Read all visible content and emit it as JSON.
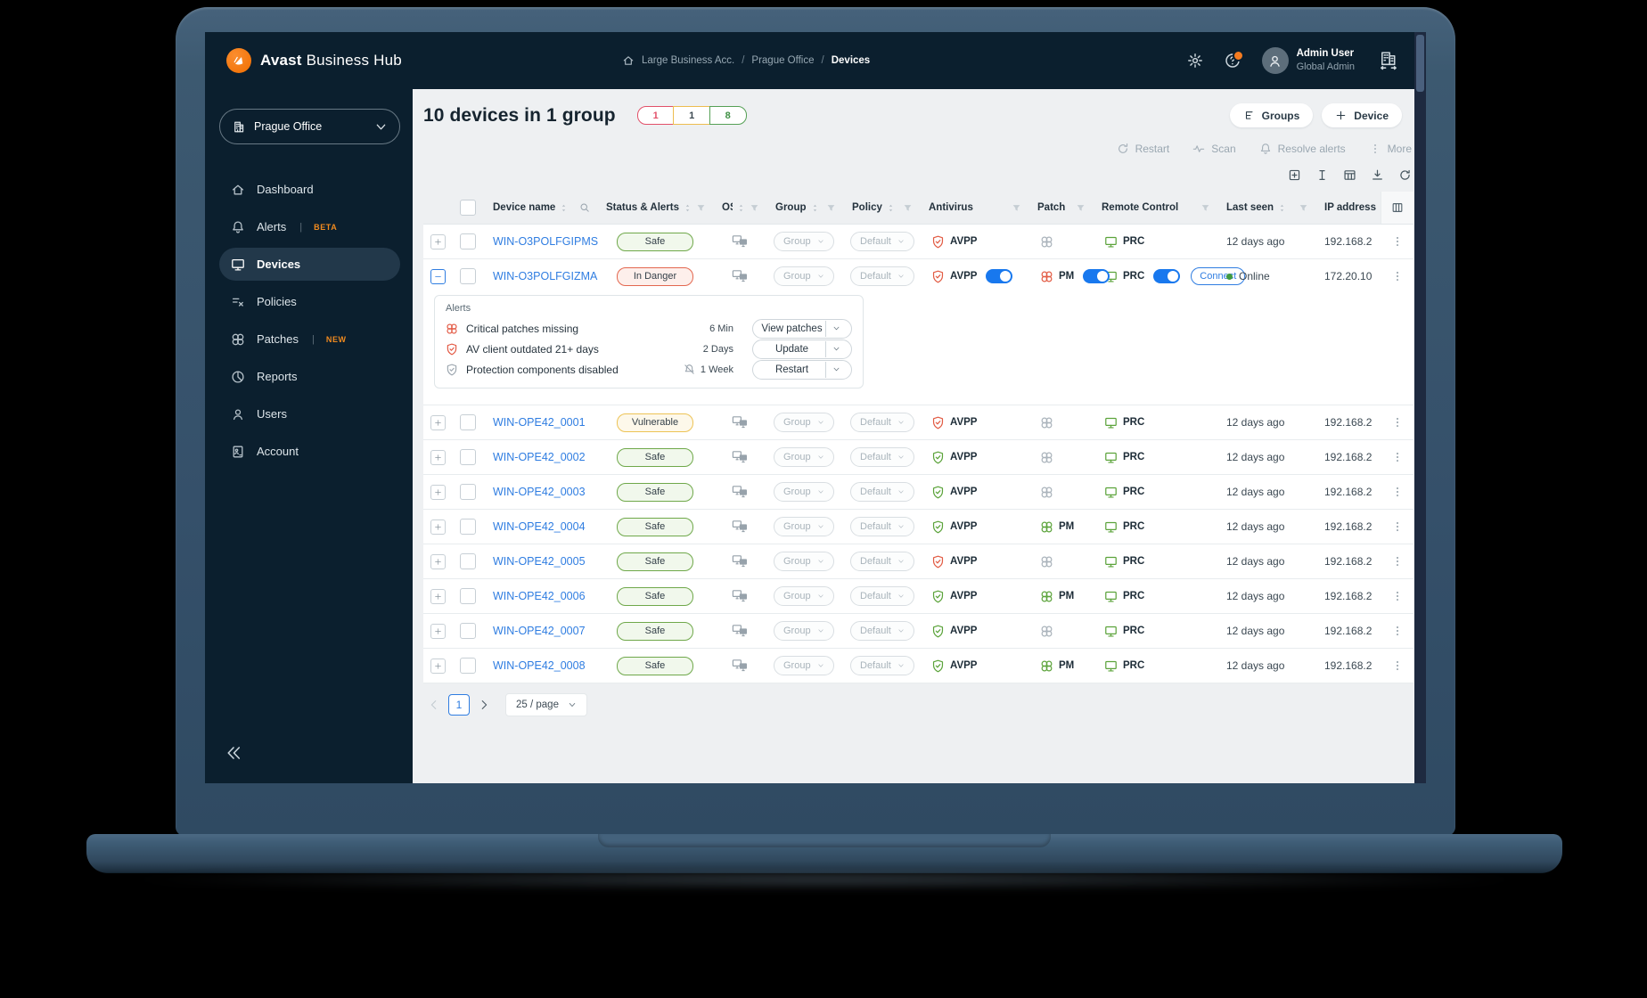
{
  "brand": {
    "name_bold": "Avast",
    "name_rest": " Business Hub"
  },
  "breadcrumb": {
    "separator": "/",
    "items": [
      "Large Business Acc.",
      "Prague Office",
      "Devices"
    ]
  },
  "user": {
    "name": "Admin User",
    "role": "Global Admin"
  },
  "theme": {
    "orange": "#f47b20",
    "blue": "#2f7de1",
    "green": "#5ba33a",
    "red": "#e25b43",
    "yellow": "#edc355",
    "dark_navy": "#0b1f2e"
  },
  "sidebar": {
    "selector_label": "Prague Office",
    "badge_divider": "|",
    "items": [
      {
        "id": "dashboard",
        "label": "Dashboard",
        "icon": "home"
      },
      {
        "id": "alerts",
        "label": "Alerts",
        "badge": "BETA",
        "icon": "bell"
      },
      {
        "id": "devices",
        "label": "Devices",
        "icon": "monitor",
        "active": true
      },
      {
        "id": "policies",
        "label": "Policies",
        "icon": "policies"
      },
      {
        "id": "patches",
        "label": "Patches",
        "badge": "NEW",
        "icon": "patch-knot"
      },
      {
        "id": "reports",
        "label": "Reports",
        "icon": "reports"
      },
      {
        "id": "users",
        "label": "Users",
        "icon": "user"
      },
      {
        "id": "account",
        "label": "Account",
        "icon": "account"
      }
    ]
  },
  "page": {
    "title": "10 devices in 1 group",
    "severity_counts": [
      {
        "value": "1",
        "level": "danger",
        "border": "#e25069",
        "text_color": "#e25069"
      },
      {
        "value": "1",
        "level": "warning",
        "border": "#edbd4f",
        "text_color": "#3a4750"
      },
      {
        "value": "8",
        "level": "safe",
        "border": "#55a055",
        "text_color": "#3f9044"
      }
    ],
    "groups_button": "Groups",
    "device_button": "Device",
    "actions": [
      {
        "id": "restart",
        "label": "Restart",
        "icon": "restart"
      },
      {
        "id": "scan",
        "label": "Scan",
        "icon": "pulse"
      },
      {
        "id": "resolve-alerts",
        "label": "Resolve alerts",
        "icon": "bell"
      },
      {
        "id": "more",
        "label": "More",
        "icon": "dots-v"
      }
    ],
    "tools": [
      "plus-square",
      "text-cursor",
      "table-grid",
      "download",
      "refresh"
    ]
  },
  "table": {
    "group_placeholder": "Group",
    "policy_placeholder": "Default",
    "headers": [
      {
        "label": "Device name",
        "sort": true,
        "search": true
      },
      {
        "label": "Status & Alerts",
        "sort": true,
        "filter": true
      },
      {
        "label": "OS",
        "sort": true,
        "filter": true
      },
      {
        "label": "Group",
        "sort": true,
        "filter": true
      },
      {
        "label": "Policy",
        "sort": true,
        "filter": true
      },
      {
        "label": "Antivirus",
        "filter": true
      },
      {
        "label": "Patch",
        "filter": true
      },
      {
        "label": "Remote Control",
        "filter": true
      },
      {
        "label": "Last seen",
        "sort": true,
        "filter": true
      },
      {
        "label": "IP address"
      }
    ],
    "rows": [
      {
        "name": "WIN-O3POLFGIPMS",
        "status": "Safe",
        "severity": "safe",
        "av": {
          "label": "AVPP",
          "state": "red"
        },
        "patch": {
          "state": "gray"
        },
        "rc": {
          "label": "PRC"
        },
        "last_seen": "12 days ago",
        "ip": "192.168.2"
      },
      {
        "name": "WIN-O3POLFGIZMA",
        "status": "In Danger",
        "severity": "danger",
        "expanded": true,
        "av": {
          "label": "AVPP",
          "state": "red",
          "toggle": true
        },
        "patch": {
          "label": "PM",
          "state": "red",
          "toggle": true
        },
        "rc": {
          "label": "PRC",
          "toggle": true,
          "connect": "Connect"
        },
        "last_seen": "Online",
        "online": true,
        "ip": "172.20.10"
      },
      {
        "name": "WIN-OPE42_0001",
        "status": "Vulnerable",
        "severity": "warn",
        "av": {
          "label": "AVPP",
          "state": "red"
        },
        "patch": {
          "state": "gray"
        },
        "rc": {
          "label": "PRC"
        },
        "last_seen": "12 days ago",
        "ip": "192.168.2"
      },
      {
        "name": "WIN-OPE42_0002",
        "status": "Safe",
        "severity": "safe",
        "av": {
          "label": "AVPP",
          "state": "green"
        },
        "patch": {
          "state": "gray"
        },
        "rc": {
          "label": "PRC"
        },
        "last_seen": "12 days ago",
        "ip": "192.168.2"
      },
      {
        "name": "WIN-OPE42_0003",
        "status": "Safe",
        "severity": "safe",
        "av": {
          "label": "AVPP",
          "state": "green"
        },
        "patch": {
          "state": "gray"
        },
        "rc": {
          "label": "PRC"
        },
        "last_seen": "12 days ago",
        "ip": "192.168.2"
      },
      {
        "name": "WIN-OPE42_0004",
        "status": "Safe",
        "severity": "safe",
        "av": {
          "label": "AVPP",
          "state": "green"
        },
        "patch": {
          "label": "PM",
          "state": "green"
        },
        "rc": {
          "label": "PRC"
        },
        "last_seen": "12 days ago",
        "ip": "192.168.2"
      },
      {
        "name": "WIN-OPE42_0005",
        "status": "Safe",
        "severity": "safe",
        "av": {
          "label": "AVPP",
          "state": "red"
        },
        "patch": {
          "state": "gray"
        },
        "rc": {
          "label": "PRC"
        },
        "last_seen": "12 days ago",
        "ip": "192.168.2"
      },
      {
        "name": "WIN-OPE42_0006",
        "status": "Safe",
        "severity": "safe",
        "av": {
          "label": "AVPP",
          "state": "green"
        },
        "patch": {
          "label": "PM",
          "state": "green"
        },
        "rc": {
          "label": "PRC"
        },
        "last_seen": "12 days ago",
        "ip": "192.168.2"
      },
      {
        "name": "WIN-OPE42_0007",
        "status": "Safe",
        "severity": "safe",
        "av": {
          "label": "AVPP",
          "state": "green"
        },
        "patch": {
          "state": "gray"
        },
        "rc": {
          "label": "PRC"
        },
        "last_seen": "12 days ago",
        "ip": "192.168.2"
      },
      {
        "name": "WIN-OPE42_0008",
        "status": "Safe",
        "severity": "safe",
        "av": {
          "label": "AVPP",
          "state": "green"
        },
        "patch": {
          "label": "PM",
          "state": "green"
        },
        "rc": {
          "label": "PRC"
        },
        "last_seen": "12 days ago",
        "ip": "192.168.2"
      }
    ]
  },
  "alerts_panel": {
    "title": "Alerts",
    "rows": [
      {
        "icon": "patch-knot",
        "color": "#e2543e",
        "text": "Critical patches missing",
        "age": "6 Min",
        "action": "View patches"
      },
      {
        "icon": "shield",
        "color": "#e2543e",
        "text": "AV client outdated 21+ days",
        "age": "2 Days",
        "action": "Update"
      },
      {
        "icon": "shield",
        "color": "#9aa4ad",
        "text": "Protection components disabled",
        "age": "1 Week",
        "age_icon": "bell-slash",
        "action": "Restart"
      }
    ]
  },
  "pagination": {
    "current_page": "1",
    "page_size": "25 / page"
  }
}
